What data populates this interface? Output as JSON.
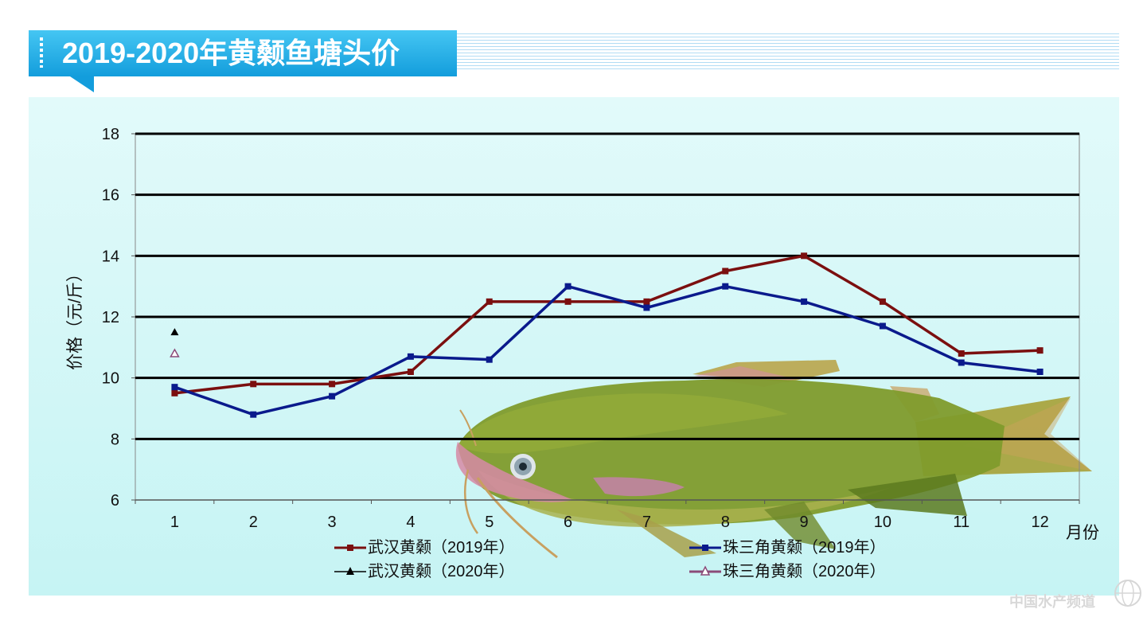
{
  "header": {
    "title": "2019-2020年黄颡鱼塘头价",
    "colors": {
      "banner": "#139ddc",
      "stripes": "#b2dcf4"
    }
  },
  "chart_data": {
    "type": "line",
    "categories": [
      "1",
      "2",
      "3",
      "4",
      "5",
      "6",
      "7",
      "8",
      "9",
      "10",
      "11",
      "12"
    ],
    "xlabel": "月份",
    "ylabel": "价格（元/斤）",
    "ylim": [
      6,
      18
    ],
    "yticks": [
      "6",
      "8",
      "10",
      "12",
      "14",
      "16",
      "18"
    ],
    "grid": true,
    "legend_position": "bottom",
    "series": [
      {
        "name": "武汉黄颡（2019年）",
        "color": "#7b0f0f",
        "marker": "square",
        "values": [
          9.5,
          9.8,
          9.8,
          10.2,
          12.5,
          12.5,
          12.5,
          13.5,
          14.0,
          12.5,
          10.8,
          10.9
        ]
      },
      {
        "name": "珠三角黄颡（2019年）",
        "color": "#0a1a8c",
        "marker": "square",
        "values": [
          9.7,
          8.8,
          9.4,
          10.7,
          10.6,
          13.0,
          12.3,
          13.0,
          12.5,
          11.7,
          10.5,
          10.2
        ]
      },
      {
        "name": "武汉黄颡（2020年）",
        "color": "#000000",
        "marker": "triangle",
        "values": [
          11.5,
          null,
          null,
          null,
          null,
          null,
          null,
          null,
          null,
          null,
          null,
          null
        ]
      },
      {
        "name": "珠三角黄颡（2020年）",
        "color": "#8b4a78",
        "marker": "triangle-open",
        "values": [
          10.8,
          null,
          null,
          null,
          null,
          null,
          null,
          null,
          null,
          null,
          null,
          null
        ]
      }
    ]
  },
  "watermark": {
    "text": "中国水产频道"
  }
}
